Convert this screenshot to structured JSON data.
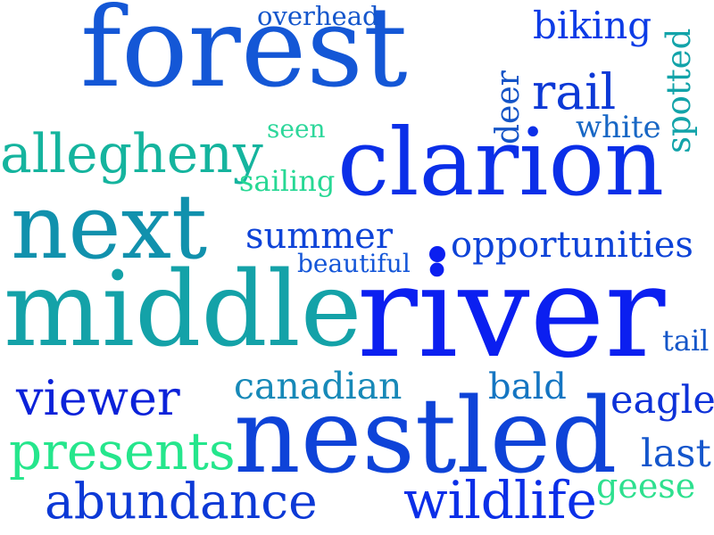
{
  "cloud": {
    "words": [
      {
        "text": "forest",
        "color": "#1457d6"
      },
      {
        "text": "overhead",
        "color": "#1456cc"
      },
      {
        "text": "biking",
        "color": "#0c3ce6"
      },
      {
        "text": "spotted",
        "color": "#12a3a9"
      },
      {
        "text": "rail",
        "color": "#0c39d6"
      },
      {
        "text": "deer",
        "color": "#1454c7"
      },
      {
        "text": "white",
        "color": "#1867c5"
      },
      {
        "text": "seen",
        "color": "#2ed79b"
      },
      {
        "text": "allegheny",
        "color": "#15b49e"
      },
      {
        "text": "clarion",
        "color": "#0b2fe8"
      },
      {
        "text": "sailing",
        "color": "#27d894"
      },
      {
        "text": "next",
        "color": "#1191ad"
      },
      {
        "text": "summer",
        "color": "#0e43d8"
      },
      {
        "text": "opportunities",
        "color": "#0e43d8"
      },
      {
        "text": "beautiful",
        "color": "#1456d8"
      },
      {
        "text": "middle",
        "color": "#14a2a8"
      },
      {
        "text": "river",
        "color": "#0b1ff0"
      },
      {
        "text": "tail",
        "color": "#1456c8"
      },
      {
        "text": "viewer",
        "color": "#0b22d9"
      },
      {
        "text": "canadian",
        "color": "#1789b8"
      },
      {
        "text": "bald",
        "color": "#1475c2"
      },
      {
        "text": "eagle",
        "color": "#0d31d8"
      },
      {
        "text": "nestled",
        "color": "#0e43d8"
      },
      {
        "text": "presents",
        "color": "#25e68c"
      },
      {
        "text": "last",
        "color": "#1456cc"
      },
      {
        "text": "abundance",
        "color": "#0c39d6"
      },
      {
        "text": "wildlife",
        "color": "#0b2fe8"
      },
      {
        "text": "geese",
        "color": "#2ee08f"
      }
    ],
    "dot_color": "#0b1ff0"
  }
}
